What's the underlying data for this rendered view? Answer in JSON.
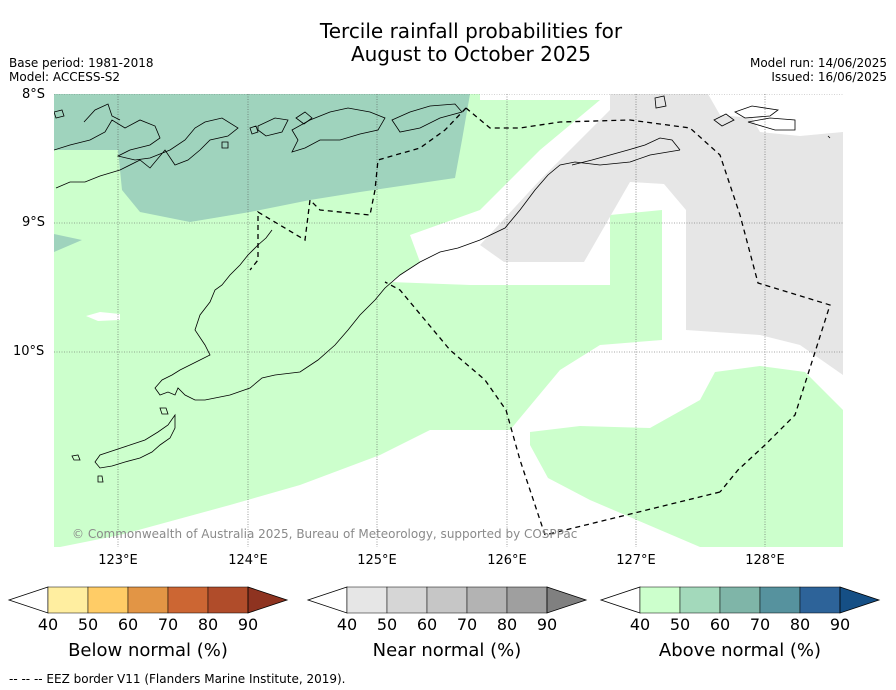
{
  "header": {
    "title_line1": "Tercile rainfall probabilities for",
    "title_line2": "August to October 2025",
    "base_period": "Base period: 1981-2018",
    "model": "Model: ACCESS-S2",
    "model_run": "Model run: 14/06/2025",
    "issued": "Issued: 16/06/2025"
  },
  "map": {
    "lat_labels": [
      "8°S",
      "9°S",
      "10°S"
    ],
    "lon_labels": [
      "123°E",
      "124°E",
      "125°E",
      "126°E",
      "127°E",
      "128°E"
    ],
    "copyright": "© Commonwealth of Australia 2025, Bureau of Meteorology, supported by COSPPac",
    "colors": {
      "above_40_50": "#ccffcc",
      "above_50_60": "#9fd3bd",
      "near_40_50": "#e6e6e6",
      "land_outline": "#000000"
    }
  },
  "colorbars": [
    {
      "name": "below-normal",
      "title": "Below normal (%)",
      "ticks": [
        "40",
        "50",
        "60",
        "70",
        "80",
        "90"
      ],
      "colors": [
        "#ffffff",
        "#ffeea0",
        "#ffcc66",
        "#e29545",
        "#cc6633",
        "#b04c2a",
        "#8e3320"
      ]
    },
    {
      "name": "near-normal",
      "title": "Near normal (%)",
      "ticks": [
        "40",
        "50",
        "60",
        "70",
        "80",
        "90"
      ],
      "colors": [
        "#ffffff",
        "#e6e6e6",
        "#d6d6d6",
        "#c6c6c6",
        "#b3b3b3",
        "#9f9f9f",
        "#808080"
      ]
    },
    {
      "name": "above-normal",
      "title": "Above normal (%)",
      "ticks": [
        "40",
        "50",
        "60",
        "70",
        "80",
        "90"
      ],
      "colors": [
        "#ffffff",
        "#ccffcc",
        "#a3d9bb",
        "#7fb5a8",
        "#56929e",
        "#2d6399",
        "#154f85"
      ]
    }
  ],
  "footer": {
    "legend_note": "--  --  -- EEZ border V11 (Flanders Marine Institute, 2019)."
  }
}
